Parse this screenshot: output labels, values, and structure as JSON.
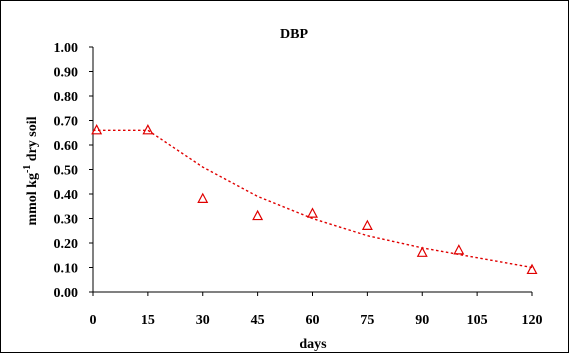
{
  "chart_data": {
    "type": "scatter",
    "title": "DBP",
    "xlabel": "days",
    "ylabel": "mmol kg-1 dry soil",
    "ylabel_parts": {
      "before": "mmol kg",
      "sup": "-1",
      "after": " dry soil"
    },
    "xlim": [
      0,
      120
    ],
    "ylim": [
      0,
      1
    ],
    "x_ticks": [
      0,
      15,
      30,
      45,
      60,
      75,
      90,
      105,
      120
    ],
    "x_tick_labels": [
      "0",
      "15",
      "30",
      "45",
      "60",
      "75",
      "90",
      "105",
      "120"
    ],
    "y_ticks": [
      0,
      0.1,
      0.2,
      0.3,
      0.4,
      0.5,
      0.6,
      0.7,
      0.8,
      0.9,
      1.0
    ],
    "y_tick_labels": [
      "0.00",
      "0.10",
      "0.20",
      "0.30",
      "0.40",
      "0.50",
      "0.60",
      "0.70",
      "0.80",
      "0.90",
      "1.00"
    ],
    "grid": false,
    "legend": "none",
    "series": [
      {
        "marker": "triangle-open",
        "color": "#e00000",
        "x": [
          1,
          15,
          30,
          45,
          60,
          75,
          90,
          100,
          120
        ],
        "y": [
          0.66,
          0.66,
          0.38,
          0.31,
          0.32,
          0.27,
          0.16,
          0.17,
          0.09
        ]
      }
    ],
    "fit_line": {
      "style": "dotted",
      "color": "#e00000",
      "x": [
        0,
        15,
        30,
        45,
        60,
        75,
        90,
        105,
        120
      ],
      "y": [
        0.66,
        0.66,
        0.51,
        0.39,
        0.3,
        0.23,
        0.18,
        0.14,
        0.1
      ]
    }
  }
}
